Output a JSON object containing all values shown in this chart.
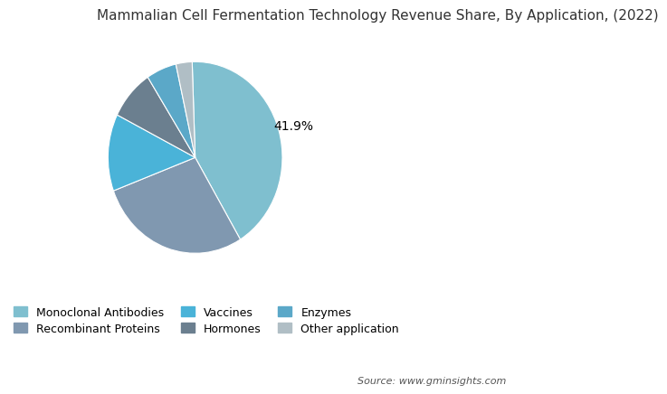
{
  "title": "Mammalian Cell Fermentation Technology Revenue Share, By Application, (2022)",
  "slices": [
    {
      "label": "Monoclonal Antibodies",
      "value": 41.9,
      "color": "#7fbfcf"
    },
    {
      "label": "Recombinant Proteins",
      "value": 28.0,
      "color": "#8098b0"
    },
    {
      "label": "Vaccines",
      "value": 13.0,
      "color": "#4ab3d8"
    },
    {
      "label": "Hormones",
      "value": 8.5,
      "color": "#6b7f8f"
    },
    {
      "label": "Enzymes",
      "value": 5.6,
      "color": "#5ba8c8"
    },
    {
      "label": "Other application",
      "value": 3.0,
      "color": "#b0bec5"
    }
  ],
  "autopct_label": "41.9%",
  "source_text": "Source: www.gminsights.com",
  "background_color": "#ffffff",
  "title_fontsize": 11,
  "legend_fontsize": 9,
  "source_fontsize": 8,
  "label_fontsize": 10
}
